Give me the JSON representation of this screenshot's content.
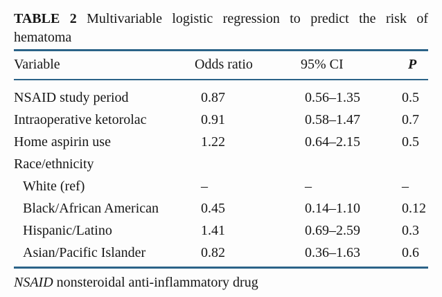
{
  "document": {
    "background": "#fdfdfd",
    "rule_color": "#2b6388",
    "text_color": "#161616"
  },
  "table": {
    "label": "TABLE 2",
    "title_rest": "Multivariable logistic regression to predict the risk of",
    "title_overflow": "hematoma",
    "columns": [
      "Variable",
      "Odds ratio",
      "95% CI",
      "P"
    ],
    "rows": [
      {
        "variable": "NSAID study period",
        "indent": false,
        "odds_ratio": "0.87",
        "ci": "0.56–1.35",
        "p": "0.5"
      },
      {
        "variable": "Intraoperative ketorolac",
        "indent": false,
        "odds_ratio": "0.91",
        "ci": "0.58–1.47",
        "p": "0.7"
      },
      {
        "variable": "Home aspirin use",
        "indent": false,
        "odds_ratio": "1.22",
        "ci": "0.64–2.15",
        "p": "0.5"
      },
      {
        "variable": "Race/ethnicity",
        "indent": false,
        "odds_ratio": "",
        "ci": "",
        "p": ""
      },
      {
        "variable": "White (ref)",
        "indent": true,
        "odds_ratio": "–",
        "ci": "–",
        "p": "–"
      },
      {
        "variable": "Black/African American",
        "indent": true,
        "odds_ratio": "0.45",
        "ci": "0.14–1.10",
        "p": "0.12"
      },
      {
        "variable": "Hispanic/Latino",
        "indent": true,
        "odds_ratio": "1.41",
        "ci": "0.69–2.59",
        "p": "0.3"
      },
      {
        "variable": "Asian/Pacific Islander",
        "indent": true,
        "odds_ratio": "0.82",
        "ci": "0.36–1.63",
        "p": "0.6"
      }
    ],
    "footnote": {
      "abbreviation": "NSAID",
      "definition": "nonsteroidal anti-inflammatory drug"
    }
  }
}
